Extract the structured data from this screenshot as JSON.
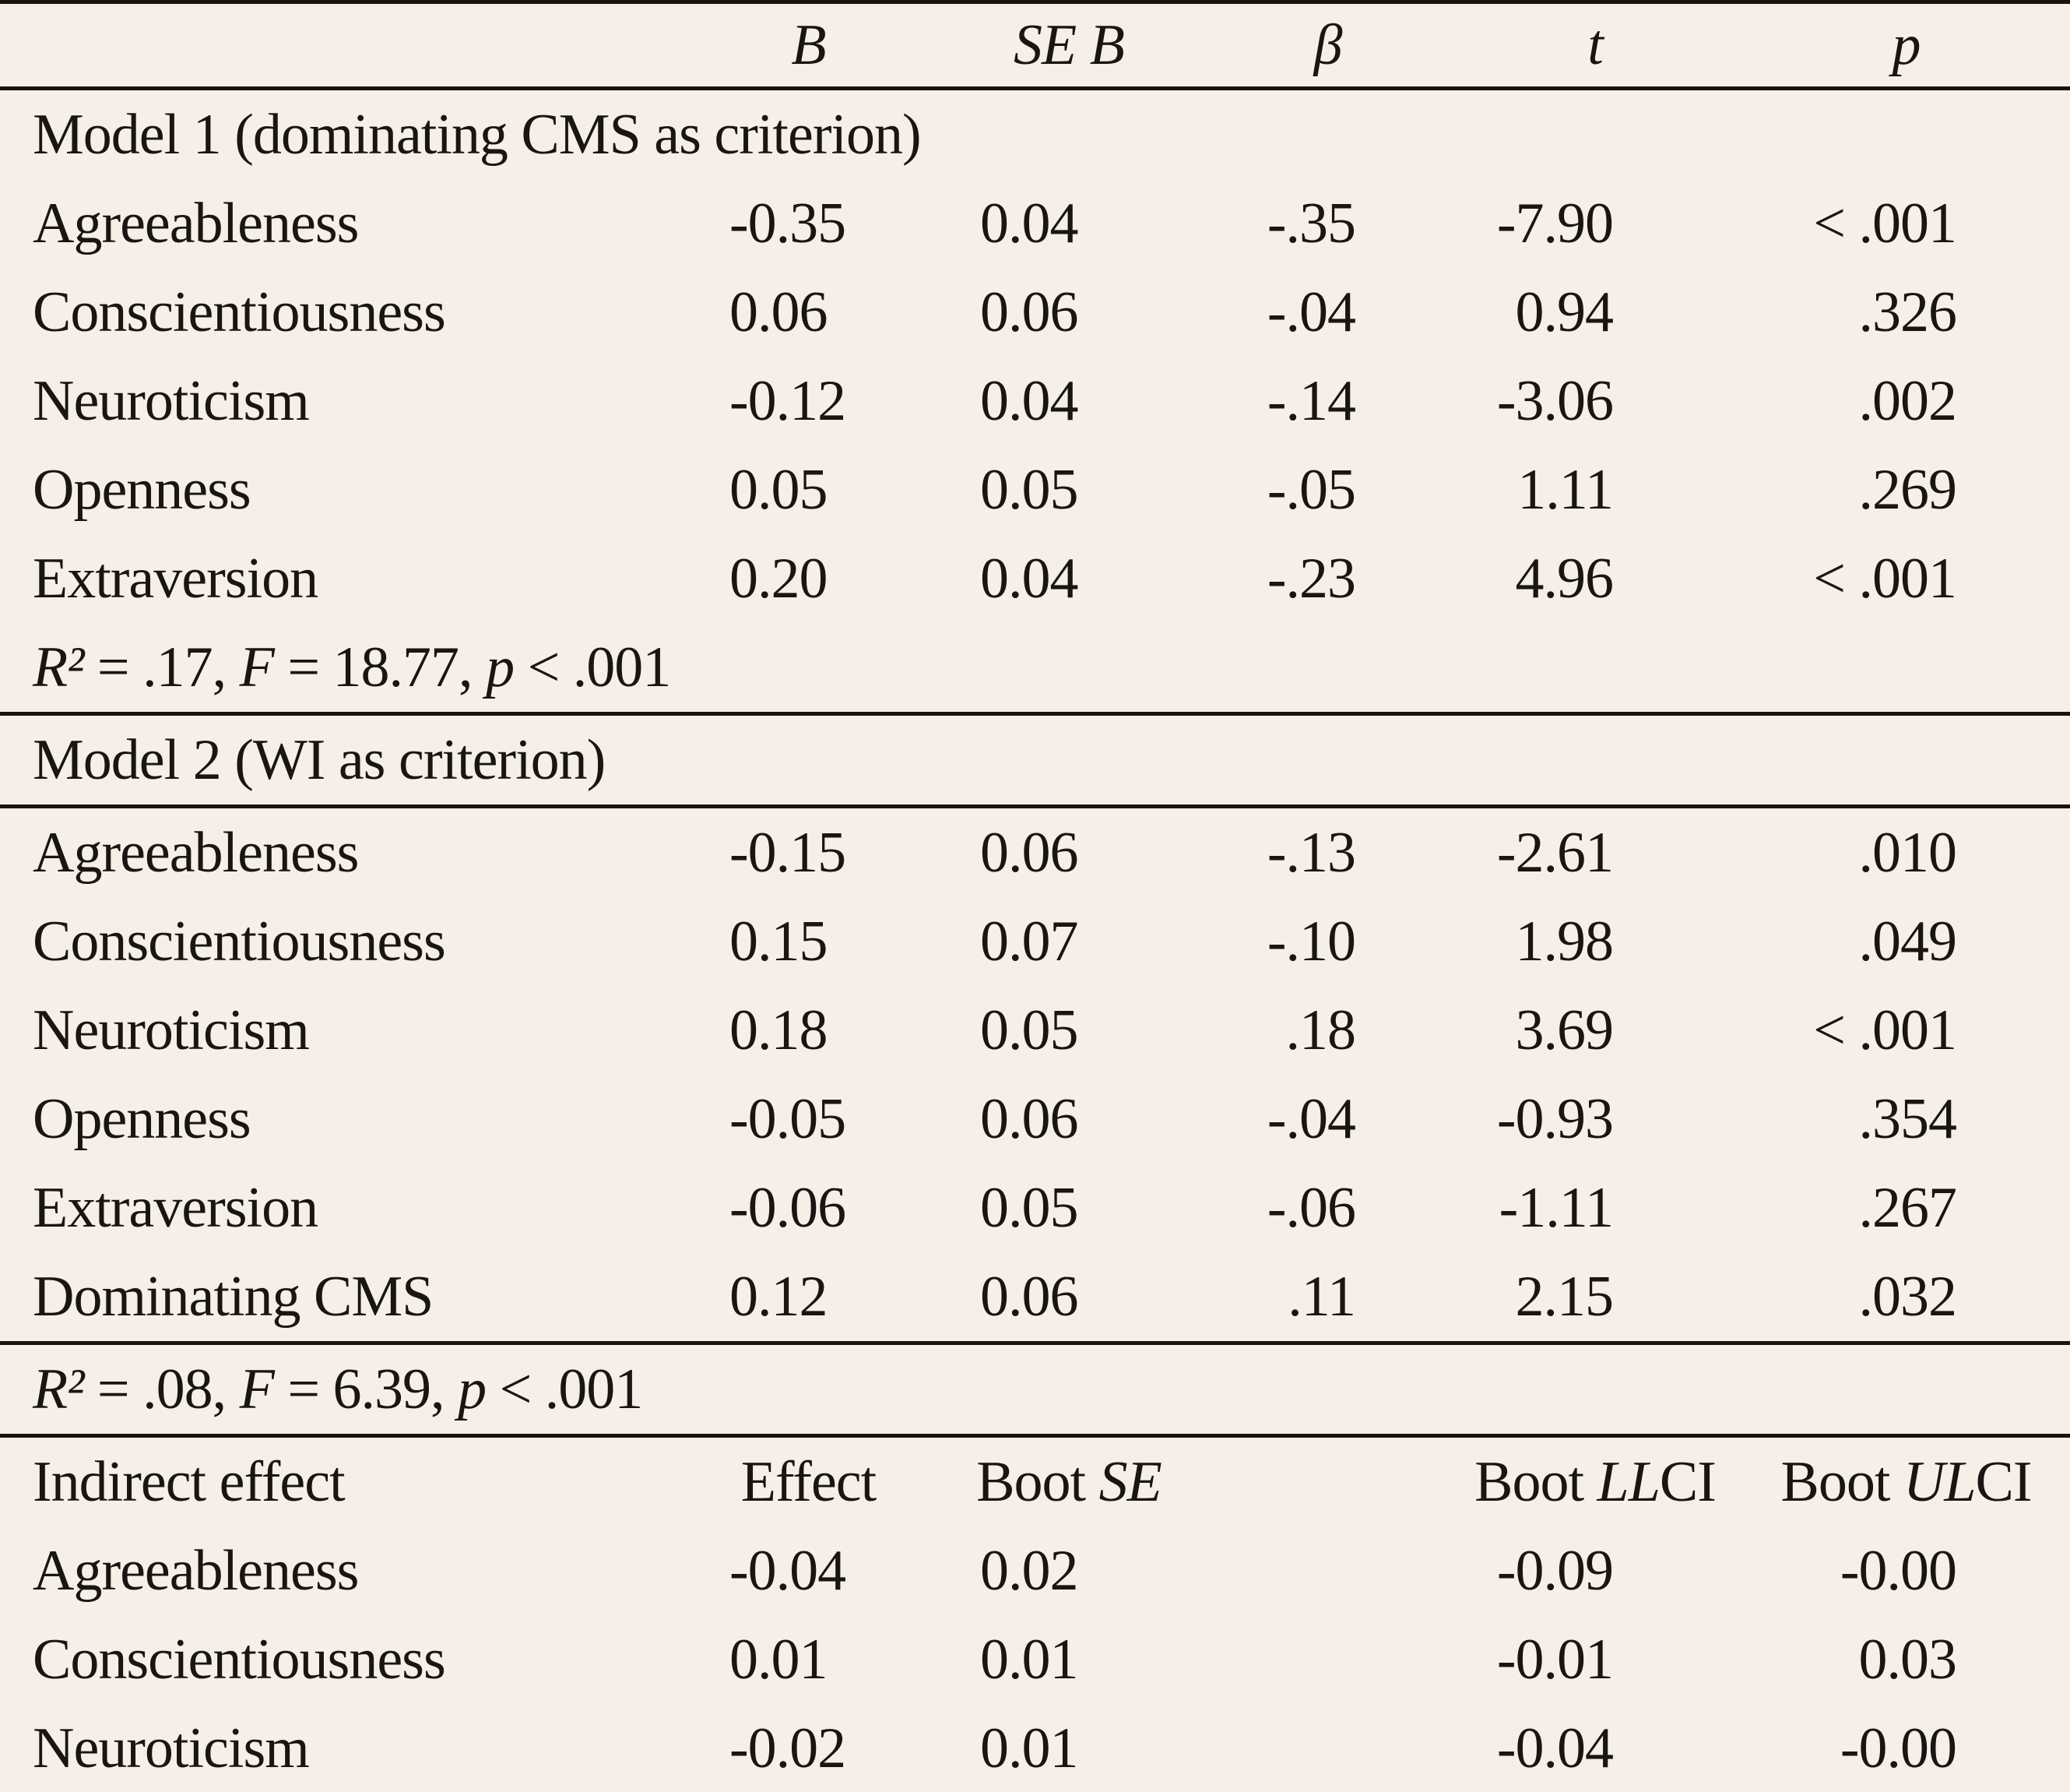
{
  "colors": {
    "background": "#f6efe7",
    "text": "#181512",
    "rule": "#17130f"
  },
  "header_row": {
    "labels": [
      "B",
      "SE B",
      "β",
      "t",
      "p"
    ]
  },
  "model1": {
    "title": "Model 1 (dominating CMS as criterion)",
    "rows": [
      {
        "label": "Agreeableness",
        "b": "-0.35",
        "se": "0.04",
        "beta": "-.35",
        "t": "-7.90",
        "p": "< .001"
      },
      {
        "label": "Conscientiousness",
        "b": "0.06",
        "se": "0.06",
        "beta": "-.04",
        "t": "0.94",
        "p": ".326"
      },
      {
        "label": "Neuroticism",
        "b": "-0.12",
        "se": "0.04",
        "beta": "-.14",
        "t": "-3.06",
        "p": ".002"
      },
      {
        "label": "Openness",
        "b": "0.05",
        "se": "0.05",
        "beta": "-.05",
        "t": "1.11",
        "p": ".269"
      },
      {
        "label": "Extraversion",
        "b": "0.20",
        "se": "0.04",
        "beta": "-.23",
        "t": "4.96",
        "p": "< .001"
      }
    ],
    "stats": {
      "r2_label": "R²",
      "r2_rest": " = .17, ",
      "f_label": "F",
      "f_rest": " = 18.77, ",
      "p_label": "p",
      "p_rest": " < .001"
    }
  },
  "model2": {
    "title": "Model 2 (WI as criterion)",
    "rows": [
      {
        "label": "Agreeableness",
        "b": "-0.15",
        "se": "0.06",
        "beta": "-.13",
        "t": "-2.61",
        "p": ".010"
      },
      {
        "label": "Conscientiousness",
        "b": "0.15",
        "se": "0.07",
        "beta": "-.10",
        "t": "1.98",
        "p": ".049"
      },
      {
        "label": "Neuroticism",
        "b": "0.18",
        "se": "0.05",
        "beta": ".18",
        "t": "3.69",
        "p": "< .001"
      },
      {
        "label": "Openness",
        "b": "-0.05",
        "se": "0.06",
        "beta": "-.04",
        "t": "-0.93",
        "p": ".354"
      },
      {
        "label": "Extraversion",
        "b": "-0.06",
        "se": "0.05",
        "beta": "-.06",
        "t": "-1.11",
        "p": ".267"
      },
      {
        "label": "Dominating CMS",
        "b": "0.12",
        "se": "0.06",
        "beta": ".11",
        "t": "2.15",
        "p": ".032"
      }
    ],
    "stats": {
      "r2_label": "R²",
      "r2_rest": " = .08, ",
      "f_label": "F",
      "f_rest": " = 6.39, ",
      "p_label": "p",
      "p_rest": " < .001"
    }
  },
  "indirect": {
    "header": {
      "label": "Indirect effect",
      "effect": "Effect",
      "boot": "Boot ",
      "se": "SE",
      "ll": "LL",
      "ul": "UL",
      "ci": "CI"
    },
    "rows": [
      {
        "label": "Agreeableness",
        "effect": "-0.04",
        "boot_se": "0.02",
        "llci": "-0.09",
        "ulci": "-0.00"
      },
      {
        "label": "Conscientiousness",
        "effect": "0.01",
        "boot_se": "0.01",
        "llci": "-0.01",
        "ulci": "0.03"
      },
      {
        "label": "Neuroticism",
        "effect": "-0.02",
        "boot_se": "0.01",
        "llci": "-0.04",
        "ulci": "-0.00"
      }
    ]
  }
}
